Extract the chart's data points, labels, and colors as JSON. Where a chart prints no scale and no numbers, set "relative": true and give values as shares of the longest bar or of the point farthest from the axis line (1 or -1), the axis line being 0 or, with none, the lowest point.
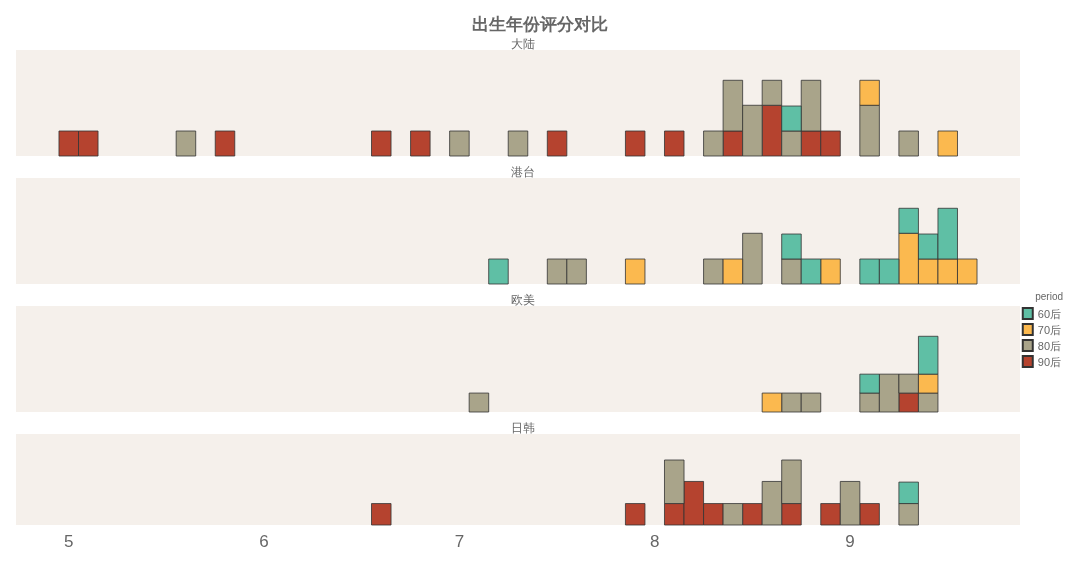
{
  "chart_data": [
    {
      "type": "bar",
      "title": "出生年份评分对比",
      "subtitle": "大陆",
      "stacked": true,
      "relative": true,
      "xlim": [
        4.73,
        9.87
      ],
      "xticks": [
        5,
        6,
        7,
        8,
        9
      ],
      "tick_labels": false,
      "grid": false,
      "legend": false,
      "x": [
        5.0,
        5.1,
        5.6,
        5.8,
        6.6,
        6.8,
        7.0,
        7.3,
        7.5,
        7.9,
        8.1,
        8.3,
        8.4,
        8.5,
        8.6,
        8.7,
        8.8,
        8.9,
        9.1,
        9.3,
        9.5
      ],
      "series": [
        {
          "color": "#b5432f",
          "values": [
            0.33,
            0.33,
            null,
            0.33,
            0.33,
            0.33,
            null,
            null,
            0.33,
            0.33,
            0.33,
            null,
            0.33,
            null,
            0.67,
            null,
            0.33,
            0.33,
            null,
            null,
            null
          ]
        },
        {
          "color": "#a9a48a",
          "values": [
            null,
            null,
            0.33,
            null,
            null,
            null,
            0.33,
            0.33,
            null,
            null,
            null,
            0.33,
            0.67,
            0.67,
            0.33,
            0.33,
            0.67,
            null,
            0.67,
            0.33,
            null
          ]
        },
        {
          "color": "#fbb94f",
          "values": [
            null,
            null,
            null,
            null,
            null,
            null,
            null,
            null,
            null,
            null,
            null,
            null,
            null,
            null,
            null,
            null,
            null,
            null,
            0.33,
            null,
            0.33
          ]
        },
        {
          "color": "#5fbfa5",
          "values": [
            null,
            null,
            null,
            null,
            null,
            null,
            null,
            null,
            null,
            null,
            null,
            null,
            null,
            null,
            null,
            0.33,
            null,
            null,
            null,
            null,
            null
          ]
        }
      ]
    },
    {
      "type": "bar",
      "subtitle": "港台",
      "stacked": true,
      "relative": true,
      "xlim": [
        4.73,
        9.87
      ],
      "xticks": [
        5,
        6,
        7,
        8,
        9
      ],
      "tick_labels": false,
      "grid": false,
      "legend": false,
      "x": [
        7.2,
        7.5,
        7.6,
        7.9,
        8.3,
        8.4,
        8.5,
        8.7,
        8.8,
        8.9,
        9.1,
        9.2,
        9.3,
        9.4,
        9.5,
        9.6
      ],
      "series": [
        {
          "color": "#a9a48a",
          "values": [
            null,
            0.33,
            0.33,
            null,
            0.33,
            null,
            0.67,
            0.33,
            null,
            null,
            null,
            null,
            null,
            null,
            null,
            null
          ]
        },
        {
          "color": "#fbb94f",
          "values": [
            null,
            null,
            null,
            0.33,
            null,
            0.33,
            null,
            null,
            null,
            0.33,
            null,
            null,
            0.67,
            0.33,
            0.33,
            0.33
          ]
        },
        {
          "color": "#5fbfa5",
          "values": [
            0.33,
            null,
            null,
            null,
            null,
            null,
            null,
            0.33,
            0.33,
            null,
            0.33,
            0.33,
            0.33,
            0.33,
            0.67,
            null
          ]
        }
      ]
    },
    {
      "type": "bar",
      "subtitle": "欧美",
      "stacked": true,
      "relative": true,
      "xlim": [
        4.73,
        9.87
      ],
      "xticks": [
        5,
        6,
        7,
        8,
        9
      ],
      "tick_labels": false,
      "grid": false,
      "legend": "right",
      "legend_title": "period",
      "x": [
        7.1,
        8.6,
        8.7,
        8.8,
        9.1,
        9.2,
        9.3,
        9.4
      ],
      "series": [
        {
          "name": "90后",
          "color": "#b5432f",
          "values": [
            null,
            null,
            null,
            null,
            null,
            null,
            0.25,
            null
          ]
        },
        {
          "name": "80后",
          "color": "#a9a48a",
          "values": [
            0.25,
            null,
            0.25,
            0.25,
            0.25,
            0.5,
            0.25,
            0.25
          ]
        },
        {
          "name": "70后",
          "color": "#fbb94f",
          "values": [
            null,
            0.25,
            null,
            null,
            null,
            null,
            null,
            0.25
          ]
        },
        {
          "name": "60后",
          "color": "#5fbfa5",
          "values": [
            null,
            null,
            null,
            null,
            0.25,
            null,
            null,
            0.5
          ]
        }
      ]
    },
    {
      "type": "bar",
      "subtitle": "日韩",
      "stacked": true,
      "relative": true,
      "xlim": [
        4.73,
        9.87
      ],
      "xticks": [
        5,
        6,
        7,
        8,
        9
      ],
      "tick_labels": "x",
      "grid": false,
      "legend": false,
      "x": [
        6.6,
        7.9,
        8.1,
        8.2,
        8.3,
        8.4,
        8.5,
        8.6,
        8.7,
        8.9,
        9.0,
        9.1,
        9.3
      ],
      "series": [
        {
          "color": "#b5432f",
          "values": [
            0.33,
            0.33,
            0.33,
            0.67,
            0.33,
            null,
            0.33,
            null,
            0.33,
            0.33,
            null,
            0.33,
            null
          ]
        },
        {
          "color": "#a9a48a",
          "values": [
            null,
            null,
            0.67,
            null,
            null,
            0.33,
            null,
            0.67,
            0.67,
            null,
            0.67,
            null,
            0.33
          ]
        },
        {
          "color": "#5fbfa5",
          "values": [
            null,
            null,
            null,
            null,
            null,
            null,
            null,
            null,
            null,
            null,
            null,
            null,
            0.33
          ]
        }
      ]
    }
  ]
}
